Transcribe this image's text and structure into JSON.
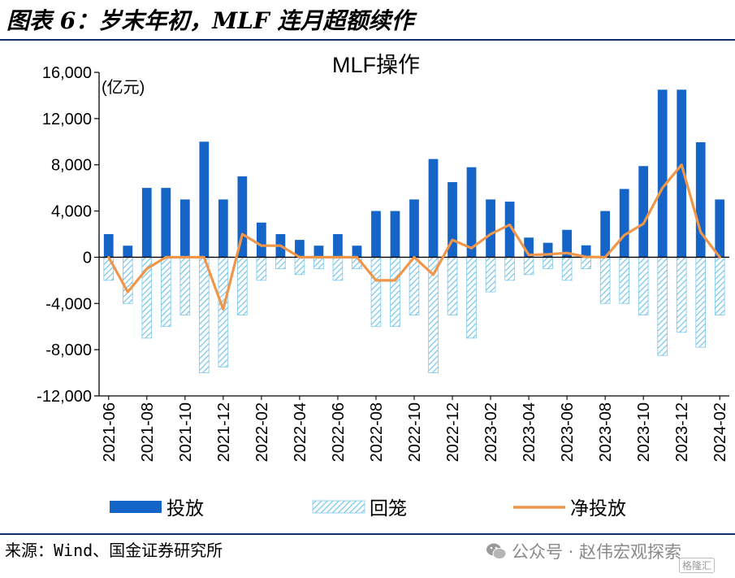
{
  "figure_title": "图表 6：岁末年初，MLF 连月超额续作",
  "source_text": "来源：Wind、国金证券研究所",
  "watermark_text": "公众号 · 赵伟宏观探索",
  "badge_text": "格隆汇",
  "colors": {
    "injection": "#1565c8",
    "maturity_stripe": "#7ec8ea",
    "net": "#f0964a",
    "rule": "#0d2f6b"
  },
  "chart_data": {
    "type": "bar",
    "title": "MLF操作",
    "unit_label": "(亿元)",
    "ylim": [
      -12000,
      16000
    ],
    "yticks": [
      -12000,
      -8000,
      -4000,
      0,
      4000,
      8000,
      12000,
      16000
    ],
    "ytick_labels": [
      "-12,000",
      "-8,000",
      "-4,000",
      "0",
      "4,000",
      "8,000",
      "12,000",
      "16,000"
    ],
    "categories": [
      "2021-06",
      "2021-07",
      "2021-08",
      "2021-09",
      "2021-10",
      "2021-11",
      "2021-12",
      "2022-01",
      "2022-02",
      "2022-03",
      "2022-04",
      "2022-05",
      "2022-06",
      "2022-07",
      "2022-08",
      "2022-09",
      "2022-10",
      "2022-11",
      "2022-12",
      "2023-01",
      "2023-02",
      "2023-03",
      "2023-04",
      "2023-05",
      "2023-06",
      "2023-07",
      "2023-08",
      "2023-09",
      "2023-10",
      "2023-11",
      "2023-12",
      "2024-01",
      "2024-02"
    ],
    "xtick_labels": [
      "2021-06",
      "2021-08",
      "2021-10",
      "2021-12",
      "2022-02",
      "2022-04",
      "2022-06",
      "2022-08",
      "2022-10",
      "2022-12",
      "2023-02",
      "2023-04",
      "2023-06",
      "2023-08",
      "2023-10",
      "2023-12",
      "2024-02"
    ],
    "legend_position": "bottom",
    "series": [
      {
        "name": "投放",
        "kind": "bar",
        "values": [
          2000,
          1000,
          6000,
          6000,
          5000,
          10000,
          5000,
          7000,
          3000,
          2000,
          1500,
          1000,
          2000,
          1000,
          4000,
          4000,
          5000,
          8500,
          6500,
          7790,
          5000,
          4810,
          1700,
          1250,
          2370,
          1030,
          4000,
          5910,
          7890,
          14500,
          14500,
          9950,
          5000
        ]
      },
      {
        "name": "回笼",
        "kind": "bar-hatched",
        "values": [
          -2000,
          -4000,
          -7000,
          -6000,
          -5000,
          -10000,
          -9500,
          -5000,
          -2000,
          -1000,
          -1500,
          -1000,
          -2000,
          -1000,
          -6000,
          -6000,
          -5000,
          -10000,
          -5000,
          -7000,
          -3000,
          -2000,
          -1500,
          -1000,
          -2000,
          -1000,
          -4000,
          -4000,
          -5000,
          -8500,
          -6500,
          -7790,
          -5000
        ]
      },
      {
        "name": "净投放",
        "kind": "line",
        "values": [
          0,
          -3000,
          -1000,
          0,
          0,
          0,
          -4500,
          2000,
          1000,
          1000,
          0,
          0,
          0,
          0,
          -2000,
          -2000,
          0,
          -1500,
          1500,
          790,
          2000,
          2810,
          200,
          250,
          370,
          30,
          0,
          1910,
          2890,
          6000,
          8000,
          2160,
          0
        ]
      }
    ]
  }
}
